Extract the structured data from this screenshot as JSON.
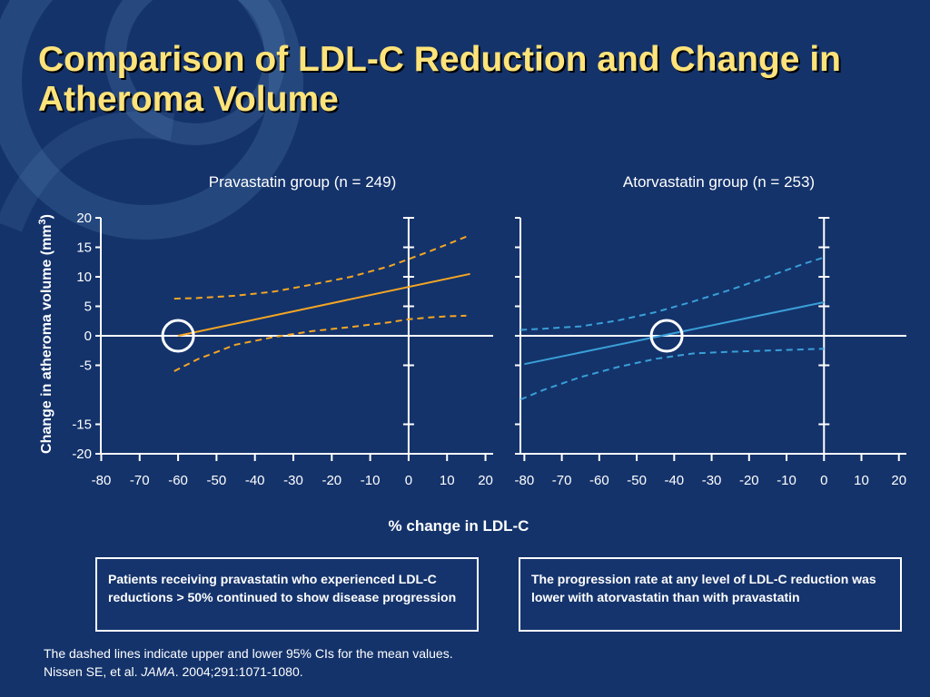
{
  "slide": {
    "title": "Comparison of LDL-C Reduction and Change in Atheroma Volume"
  },
  "callouts": {
    "left": "Patients receiving pravastatin who experienced LDL-C reductions > 50% continued to show disease progression",
    "right": "The progression rate at any level of LDL-C reduction was lower with atorvastatin than with pravastatin"
  },
  "footnote": {
    "line1": "The dashed lines indicate upper and lower 95% CIs for the mean values.",
    "citation_prefix": "Nissen SE, et al.",
    "journal": "JAMA",
    "citation_suffix": ". 2004;291:1071-1080."
  },
  "colors": {
    "background": "#14336b",
    "title": "#fde37a",
    "pravastatin": "#f5a623",
    "atorvastatin": "#3a9fd8",
    "axes": "#ffffff"
  },
  "chart_data": {
    "type": "line",
    "xlabel": "% change in LDL-C",
    "ylabel": "Change in atheroma volume (mm",
    "ylabel_sup": "3",
    "ylabel_end": ")",
    "ylim": [
      -20,
      20
    ],
    "yticks": [
      "20",
      "15",
      "10",
      "5",
      "0",
      "-5",
      "-15",
      "-20"
    ],
    "yticks_values": [
      20,
      15,
      10,
      5,
      0,
      -5,
      -15,
      -20
    ],
    "panels": [
      {
        "title": "Pravastatin group (n = 249)",
        "xlim": [
          -82,
          22
        ],
        "xticks": [
          "-80",
          "-70",
          "-60",
          "-50",
          "-40",
          "-30",
          "-20",
          "-10",
          "0",
          "10",
          "20"
        ],
        "xticks_values": [
          -80,
          -70,
          -60,
          -50,
          -40,
          -30,
          -20,
          -10,
          0,
          10,
          20
        ],
        "mean": {
          "x": [
            -60,
            16
          ],
          "y": [
            0,
            10.5
          ]
        },
        "ci_upper": {
          "x": [
            -61,
            -55,
            -45,
            -35,
            -25,
            -15,
            -5,
            0,
            5,
            10,
            15
          ],
          "y": [
            6.3,
            6.4,
            6.8,
            7.5,
            8.7,
            10,
            11.8,
            13,
            14.2,
            15.5,
            16.8
          ]
        },
        "ci_lower": {
          "x": [
            -61,
            -55,
            -45,
            -35,
            -25,
            -15,
            -5,
            0,
            5,
            10,
            15
          ],
          "y": [
            -6,
            -4,
            -1.5,
            -0.2,
            0.8,
            1.5,
            2.3,
            2.8,
            3.1,
            3.3,
            3.4
          ]
        },
        "circle_at": {
          "x": -60,
          "y": 0
        }
      },
      {
        "title": "Atorvastatin group (n = 253)",
        "xlim": [
          -83,
          22
        ],
        "xticks": [
          "-80",
          "-70",
          "-60",
          "-50",
          "-40",
          "-30",
          "-20",
          "-10",
          "0",
          "10",
          "20"
        ],
        "xticks_values": [
          -80,
          -70,
          -60,
          -50,
          -40,
          -30,
          -20,
          -10,
          0,
          10,
          20
        ],
        "mean": {
          "x": [
            -80,
            0
          ],
          "y": [
            -4.8,
            5.7
          ]
        },
        "ci_upper": {
          "x": [
            -81,
            -75,
            -65,
            -55,
            -45,
            -35,
            -25,
            -15,
            -5,
            0
          ],
          "y": [
            1,
            1.2,
            1.6,
            2.6,
            4,
            5.8,
            7.8,
            10,
            12.3,
            13.3
          ]
        },
        "ci_lower": {
          "x": [
            -81,
            -75,
            -65,
            -55,
            -45,
            -35,
            -25,
            -15,
            -5,
            0
          ],
          "y": [
            -10.8,
            -9.2,
            -7,
            -5.3,
            -3.9,
            -3,
            -2.7,
            -2.5,
            -2.3,
            -2.2
          ]
        },
        "circle_at": {
          "x": -42,
          "y": 0
        }
      }
    ]
  }
}
